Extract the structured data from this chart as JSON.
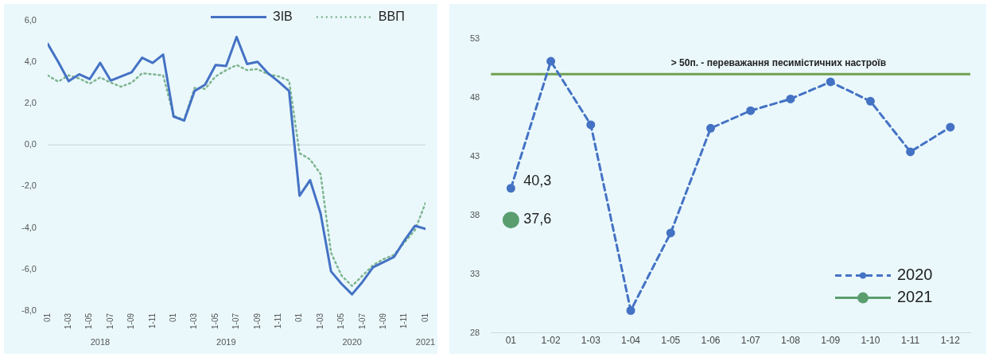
{
  "chart_data": [
    {
      "type": "line",
      "x": [
        "2018-01",
        "2018-02",
        "2018-03",
        "2018-04",
        "2018-05",
        "2018-06",
        "2018-07",
        "2018-08",
        "2018-09",
        "2018-10",
        "2018-11",
        "2018-12",
        "2019-01",
        "2019-02",
        "2019-03",
        "2019-04",
        "2019-05",
        "2019-06",
        "2019-07",
        "2019-08",
        "2019-09",
        "2019-10",
        "2019-11",
        "2019-12",
        "2020-01",
        "2020-02",
        "2020-03",
        "2020-04",
        "2020-05",
        "2020-06",
        "2020-07",
        "2020-08",
        "2020-09",
        "2020-10",
        "2020-11",
        "2020-12",
        "2021-01"
      ],
      "series": [
        {
          "name": "ЗІВ",
          "color": "#4472c4",
          "line_style": "solid",
          "marker": "none",
          "values": [
            4.87,
            4.0,
            3.07,
            3.4,
            3.17,
            3.95,
            3.1,
            3.3,
            3.5,
            4.2,
            3.95,
            4.35,
            1.36,
            1.17,
            2.6,
            2.9,
            3.85,
            3.8,
            5.2,
            3.9,
            4.0,
            3.45,
            3.05,
            2.6,
            -2.45,
            -1.7,
            -3.3,
            -6.1,
            -6.7,
            -7.2,
            -6.6,
            -5.9,
            -5.65,
            -5.4,
            -4.6,
            -3.9,
            -4.05
          ]
        },
        {
          "name": "ВВП",
          "color": "#7fb58f",
          "line_style": "dotted",
          "marker": "none",
          "values": [
            3.35,
            3.05,
            3.35,
            3.2,
            2.95,
            3.25,
            3.0,
            2.8,
            3.0,
            3.45,
            3.4,
            3.35,
            1.4,
            1.2,
            2.75,
            2.7,
            3.3,
            3.6,
            3.85,
            3.6,
            3.65,
            3.4,
            3.3,
            3.1,
            -0.4,
            -0.7,
            -1.4,
            -5.2,
            -6.3,
            -6.8,
            -6.3,
            -5.8,
            -5.5,
            -5.3,
            -4.7,
            -4.1,
            -2.8
          ]
        }
      ],
      "xlim": [
        "2018-01",
        "2021-01"
      ],
      "xticks": [
        {
          "value": "2018-01",
          "label": "01"
        },
        {
          "value": "2018-03",
          "label": "1-03"
        },
        {
          "value": "2018-05",
          "label": "1-05"
        },
        {
          "value": "2018-07",
          "label": "1-07"
        },
        {
          "value": "2018-09",
          "label": "1-09"
        },
        {
          "value": "2018-11",
          "label": "1-11"
        },
        {
          "value": "2019-01",
          "label": "01"
        },
        {
          "value": "2019-03",
          "label": "1-03"
        },
        {
          "value": "2019-05",
          "label": "1-05"
        },
        {
          "value": "2019-07",
          "label": "1-07"
        },
        {
          "value": "2019-09",
          "label": "1-09"
        },
        {
          "value": "2019-11",
          "label": "1-11"
        },
        {
          "value": "2020-01",
          "label": "01"
        },
        {
          "value": "2020-03",
          "label": "1-03"
        },
        {
          "value": "2020-05",
          "label": "1-05"
        },
        {
          "value": "2020-07",
          "label": "1-07"
        },
        {
          "value": "2020-09",
          "label": "1-09"
        },
        {
          "value": "2020-11",
          "label": "1-11"
        },
        {
          "value": "2021-01",
          "label": "01"
        }
      ],
      "ylim": [
        -8,
        6
      ],
      "yticks": [
        {
          "value": -8,
          "label": "-8,0"
        },
        {
          "value": -6,
          "label": "-6,0"
        },
        {
          "value": -4,
          "label": "-4,0"
        },
        {
          "value": -2,
          "label": "-2,0"
        },
        {
          "value": 0,
          "label": "0,0"
        },
        {
          "value": 2,
          "label": "2,0"
        },
        {
          "value": 4,
          "label": "4,0"
        },
        {
          "value": 6,
          "label": "6,0"
        }
      ],
      "ref_lines": [
        {
          "axis": "y",
          "value": 0,
          "label": null,
          "color": "#c8d0d8"
        }
      ],
      "annotations": [
        "2018",
        "2019",
        "2020",
        "2021"
      ],
      "grid": false,
      "legend": "top right"
    },
    {
      "type": "line",
      "categories": [
        "01",
        "1-02",
        "1-03",
        "1-04",
        "1-05",
        "1-06",
        "1-07",
        "1-08",
        "1-09",
        "1-10",
        "1-11",
        "1-12"
      ],
      "series": [
        {
          "name": "2020",
          "color": "#4472c4",
          "line_style": "dashed",
          "marker": "circle",
          "values": [
            40.3,
            51.1,
            45.7,
            29.9,
            36.5,
            45.4,
            46.9,
            47.9,
            49.35,
            47.7,
            43.4,
            45.5
          ],
          "value_labels": [
            "40,3",
            null,
            null,
            null,
            null,
            null,
            null,
            null,
            null,
            null,
            null,
            null
          ]
        },
        {
          "name": "2021",
          "color": "#5a9e6f",
          "line_style": "solid",
          "marker": "circle",
          "values": [
            37.6,
            null,
            null,
            null,
            null,
            null,
            null,
            null,
            null,
            null,
            null,
            null
          ],
          "value_labels": [
            "37,6",
            null,
            null,
            null,
            null,
            null,
            null,
            null,
            null,
            null,
            null,
            null
          ]
        }
      ],
      "ylim": [
        28,
        53
      ],
      "yticks": [
        28,
        33,
        38,
        43,
        48,
        53
      ],
      "ref_lines": [
        {
          "axis": "y",
          "value": 50,
          "label": "> 50п. - переважання песимістичних настроїв",
          "color": "#70a050"
        }
      ],
      "grid": false,
      "legend": "bottom right"
    }
  ]
}
